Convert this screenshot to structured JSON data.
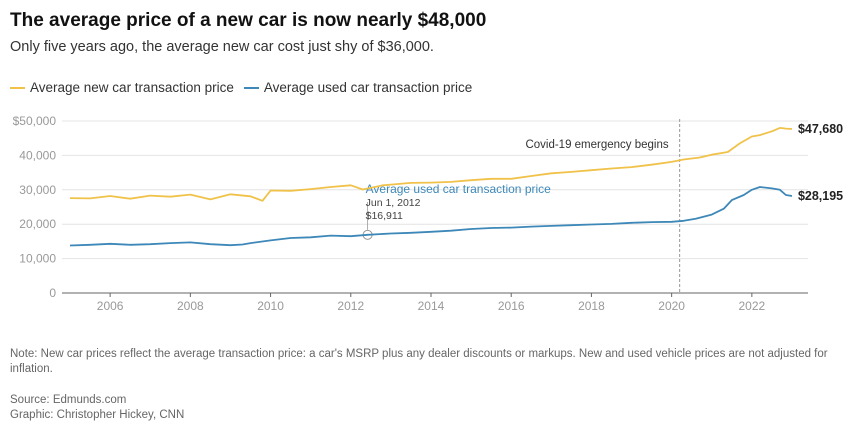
{
  "header": {
    "title": "The average price of a new car is now nearly $48,000",
    "subtitle": "Only five years ago, the average new car cost just shy of $36,000."
  },
  "legend": {
    "items": [
      {
        "label": "Average new car transaction price",
        "color": "#f0c24a"
      },
      {
        "label": "Average used car transaction price",
        "color": "#3d88b8"
      }
    ]
  },
  "chart_data": {
    "type": "line",
    "title": "The average price of a new car is now nearly $48,000",
    "subtitle": "Only five years ago, the average new car cost just shy of $36,000.",
    "xlabel": "",
    "ylabel": "",
    "xlim": [
      2004.8,
      2023.4
    ],
    "ylim": [
      0,
      50000
    ],
    "grid": true,
    "legend_position": "top-left",
    "x_ticks": [
      2006,
      2008,
      2010,
      2012,
      2014,
      2016,
      2018,
      2020,
      2022
    ],
    "y_ticks": [
      {
        "value": 0,
        "label": "0"
      },
      {
        "value": 10000,
        "label": "10,000"
      },
      {
        "value": 20000,
        "label": "20,000"
      },
      {
        "value": 30000,
        "label": "30,000"
      },
      {
        "value": 40000,
        "label": "40,000"
      },
      {
        "value": 50000,
        "label": "$50,000"
      }
    ],
    "series": [
      {
        "name": "Average new car transaction price",
        "color": "#f0c24a",
        "end_label": "$47,680",
        "points": [
          [
            2005.0,
            27600
          ],
          [
            2005.5,
            27500
          ],
          [
            2006.0,
            28200
          ],
          [
            2006.5,
            27400
          ],
          [
            2007.0,
            28300
          ],
          [
            2007.5,
            28000
          ],
          [
            2008.0,
            28600
          ],
          [
            2008.5,
            27200
          ],
          [
            2009.0,
            28700
          ],
          [
            2009.5,
            28100
          ],
          [
            2009.8,
            26800
          ],
          [
            2010.0,
            29800
          ],
          [
            2010.5,
            29700
          ],
          [
            2011.0,
            30200
          ],
          [
            2011.5,
            30800
          ],
          [
            2012.0,
            31300
          ],
          [
            2012.3,
            30100
          ],
          [
            2012.8,
            31300
          ],
          [
            2013.0,
            31500
          ],
          [
            2013.5,
            32000
          ],
          [
            2014.0,
            32100
          ],
          [
            2014.5,
            32300
          ],
          [
            2015.0,
            32800
          ],
          [
            2015.5,
            33200
          ],
          [
            2016.0,
            33200
          ],
          [
            2016.5,
            34000
          ],
          [
            2017.0,
            34800
          ],
          [
            2017.5,
            35200
          ],
          [
            2018.0,
            35700
          ],
          [
            2018.5,
            36200
          ],
          [
            2019.0,
            36600
          ],
          [
            2019.5,
            37300
          ],
          [
            2020.0,
            38100
          ],
          [
            2020.3,
            38800
          ],
          [
            2020.7,
            39400
          ],
          [
            2021.0,
            40200
          ],
          [
            2021.4,
            41000
          ],
          [
            2021.7,
            43500
          ],
          [
            2022.0,
            45500
          ],
          [
            2022.2,
            45900
          ],
          [
            2022.5,
            47000
          ],
          [
            2022.7,
            48000
          ],
          [
            2022.85,
            47800
          ],
          [
            2023.0,
            47680
          ]
        ]
      },
      {
        "name": "Average used car transaction price",
        "color": "#3d88b8",
        "end_label": "$28,195",
        "points": [
          [
            2005.0,
            13800
          ],
          [
            2005.5,
            14000
          ],
          [
            2006.0,
            14300
          ],
          [
            2006.5,
            14000
          ],
          [
            2007.0,
            14200
          ],
          [
            2007.5,
            14500
          ],
          [
            2008.0,
            14700
          ],
          [
            2008.5,
            14200
          ],
          [
            2009.0,
            13900
          ],
          [
            2009.3,
            14100
          ],
          [
            2009.5,
            14500
          ],
          [
            2010.0,
            15300
          ],
          [
            2010.5,
            16000
          ],
          [
            2011.0,
            16200
          ],
          [
            2011.5,
            16700
          ],
          [
            2012.0,
            16500
          ],
          [
            2012.42,
            16911
          ],
          [
            2013.0,
            17300
          ],
          [
            2013.5,
            17500
          ],
          [
            2014.0,
            17800
          ],
          [
            2014.5,
            18100
          ],
          [
            2015.0,
            18600
          ],
          [
            2015.5,
            18900
          ],
          [
            2016.0,
            19000
          ],
          [
            2016.5,
            19300
          ],
          [
            2017.0,
            19500
          ],
          [
            2017.5,
            19700
          ],
          [
            2018.0,
            19900
          ],
          [
            2018.5,
            20100
          ],
          [
            2019.0,
            20400
          ],
          [
            2019.5,
            20600
          ],
          [
            2020.0,
            20700
          ],
          [
            2020.3,
            21000
          ],
          [
            2020.6,
            21600
          ],
          [
            2021.0,
            22800
          ],
          [
            2021.3,
            24500
          ],
          [
            2021.5,
            27000
          ],
          [
            2021.8,
            28500
          ],
          [
            2022.0,
            30000
          ],
          [
            2022.2,
            30800
          ],
          [
            2022.5,
            30400
          ],
          [
            2022.7,
            30000
          ],
          [
            2022.85,
            28500
          ],
          [
            2023.0,
            28195
          ]
        ]
      }
    ],
    "annotations": [
      {
        "type": "vline",
        "x": 2020.2,
        "label": "Covid-19 emergency begins",
        "color": "#999999"
      },
      {
        "type": "point",
        "series": "Average used car transaction price",
        "x": 2012.42,
        "y": 16911,
        "label": "Average used car transaction price",
        "date_label": "Jun 1, 2012",
        "value_label": "$16,911"
      }
    ]
  },
  "footer": {
    "note": "Note: New car prices reflect the average transaction price: a car's MSRP plus any dealer discounts or markups. New and used vehicle prices are not adjusted for inflation.",
    "source": "Source: Edmunds.com",
    "credit": "Graphic: Christopher Hickey, CNN"
  }
}
